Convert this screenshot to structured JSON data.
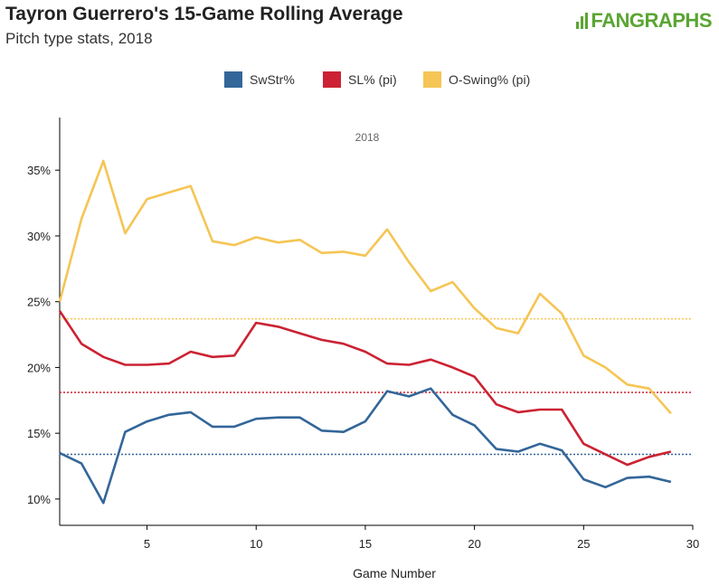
{
  "header": {
    "title": "Tayron Guerrero's 15-Game Rolling Average",
    "subtitle": "Pitch type stats, 2018",
    "logo_text": "FANGRAPHS"
  },
  "colors": {
    "swstr": "#336699",
    "sl": "#cc2233",
    "oswing": "#f5c555",
    "logo": "#5aa533"
  },
  "chart_data": {
    "type": "line",
    "year_label": "2018",
    "xlabel": "Game Number",
    "ylabel": "",
    "xlim": [
      1,
      30
    ],
    "ylim": [
      0.08,
      0.39
    ],
    "x_ticks": [
      5,
      10,
      15,
      20,
      25,
      30
    ],
    "y_ticks": [
      0.1,
      0.15,
      0.2,
      0.25,
      0.3,
      0.35
    ],
    "y_tick_labels": [
      "10%",
      "15%",
      "20%",
      "25%",
      "30%",
      "35%"
    ],
    "x": [
      1,
      2,
      3,
      4,
      5,
      6,
      7,
      8,
      9,
      10,
      11,
      12,
      13,
      14,
      15,
      16,
      17,
      18,
      19,
      20,
      21,
      22,
      23,
      24,
      25,
      26,
      27,
      28,
      29
    ],
    "series": [
      {
        "name": "SwStr%",
        "color": "#336699",
        "average": 0.134,
        "values": [
          0.135,
          0.127,
          0.097,
          0.151,
          0.159,
          0.164,
          0.166,
          0.155,
          0.155,
          0.161,
          0.162,
          0.162,
          0.152,
          0.151,
          0.159,
          0.182,
          0.178,
          0.184,
          0.164,
          0.156,
          0.138,
          0.136,
          0.142,
          0.137,
          0.115,
          0.109,
          0.116,
          0.117,
          0.113
        ]
      },
      {
        "name": "SL% (pi)",
        "color": "#cc2233",
        "average": 0.181,
        "values": [
          0.243,
          0.218,
          0.208,
          0.202,
          0.202,
          0.203,
          0.212,
          0.208,
          0.209,
          0.234,
          0.231,
          0.226,
          0.221,
          0.218,
          0.212,
          0.203,
          0.202,
          0.206,
          0.2,
          0.193,
          0.172,
          0.166,
          0.168,
          0.168,
          0.142,
          0.134,
          0.126,
          0.132,
          0.136
        ]
      },
      {
        "name": "O-Swing% (pi)",
        "color": "#f5c555",
        "average": 0.237,
        "values": [
          0.25,
          0.313,
          0.357,
          0.302,
          0.328,
          0.333,
          0.338,
          0.296,
          0.293,
          0.299,
          0.295,
          0.297,
          0.287,
          0.288,
          0.285,
          0.305,
          0.28,
          0.258,
          0.265,
          0.245,
          0.23,
          0.226,
          0.256,
          0.241,
          0.209,
          0.2,
          0.187,
          0.184,
          0.165
        ]
      }
    ],
    "grid": false,
    "legend_position": "top-center"
  }
}
